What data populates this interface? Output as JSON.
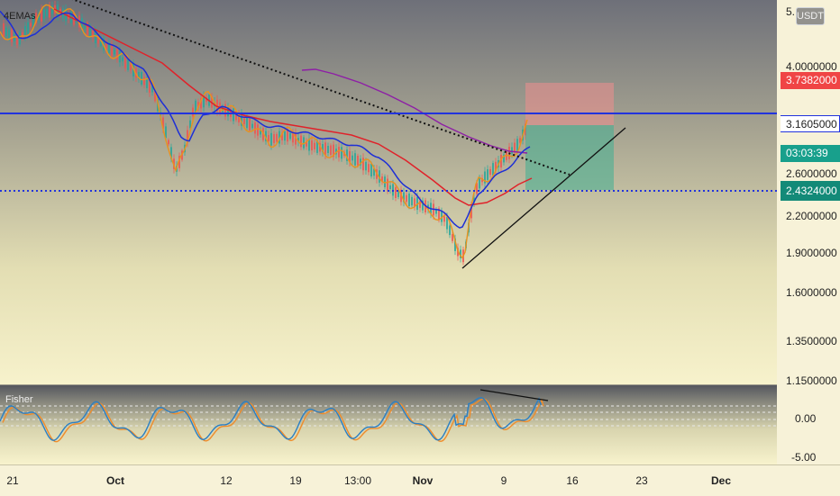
{
  "indicators": {
    "main_label": "4EMAs",
    "sub_label": "Fisher"
  },
  "currency": "USDT",
  "price_axis": {
    "ticks": [
      "4.0000000",
      "2.6000000",
      "2.2000000",
      "1.9000000",
      "1.6000000",
      "1.3500000",
      "1.1500000"
    ],
    "top_partial": "5.",
    "badges": {
      "stop_price": "3.7382000",
      "last_price": "3.1605000",
      "countdown": "03:03:39",
      "target_price": "2.4324000"
    }
  },
  "fisher_axis": {
    "ticks": [
      "0.00",
      "-5.00"
    ]
  },
  "time_axis": {
    "labels": [
      "21",
      "Oct",
      "12",
      "19",
      "13:00",
      "Nov",
      "9",
      "16",
      "23",
      "Dec"
    ],
    "bold": [
      "Oct",
      "Nov",
      "Dec"
    ]
  },
  "colors": {
    "horizontal_level": "#2233dd",
    "ema_fast": "#e8921e",
    "ema_blue": "#1e2fd6",
    "ema_red": "#e0222a",
    "ema_purple": "#8e1fa6",
    "stop_badge": "#f04545",
    "last_price_badge": "#18a08c",
    "target_badge": "#138a78",
    "candle_up": "#26a69a",
    "candle_down": "#ef5350",
    "fisher_line1": "#2a7fc4",
    "fisher_line2": "#ef8c2a"
  }
}
